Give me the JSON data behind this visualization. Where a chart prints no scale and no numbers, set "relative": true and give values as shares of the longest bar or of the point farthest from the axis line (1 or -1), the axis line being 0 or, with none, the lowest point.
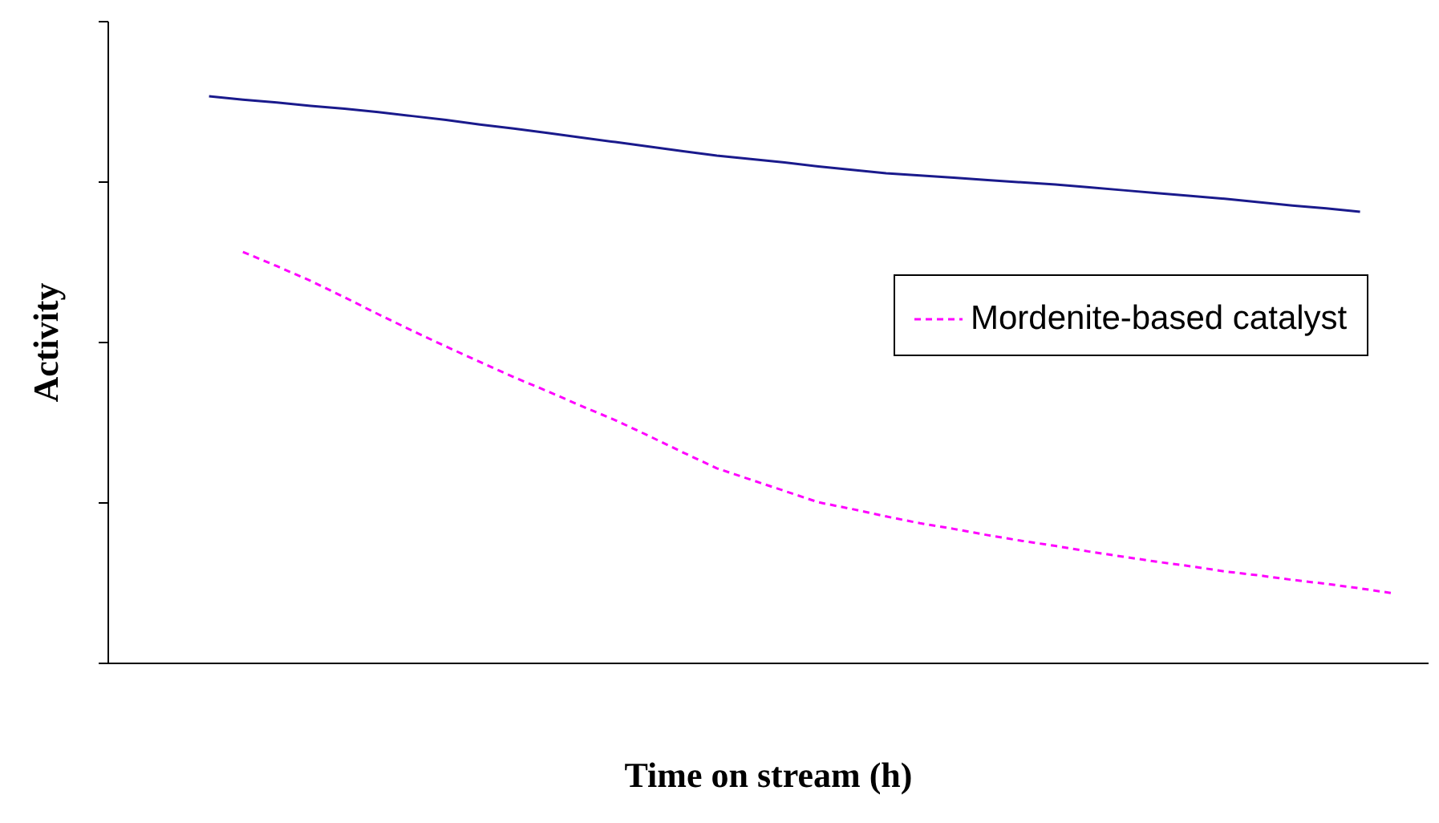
{
  "chart_data": {
    "type": "line",
    "relative": true,
    "xlabel": "Time on stream (h)",
    "ylabel": "Activity",
    "legend": "right",
    "categories": [
      null,
      null,
      null,
      null,
      null,
      null,
      null,
      null,
      null,
      null,
      null,
      null,
      null,
      null,
      null,
      null,
      null,
      null,
      null,
      null,
      null,
      null,
      null,
      null,
      null,
      null,
      null,
      null,
      null,
      null,
      null,
      null,
      null,
      null,
      null,
      null,
      null,
      null,
      null,
      null
    ],
    "series": [
      {
        "color": "#1a1a8c",
        "line_style": "solid",
        "values": [
          null,
          null,
          null,
          1.0,
          0.994,
          0.989,
          0.983,
          0.978,
          0.972,
          0.965,
          0.958,
          0.95,
          0.943,
          0.935,
          0.927,
          0.919,
          0.911,
          0.903,
          0.895,
          0.889,
          0.883,
          0.876,
          0.87,
          0.864,
          0.86,
          0.856,
          0.852,
          0.848,
          0.844,
          0.839,
          0.834,
          0.829,
          0.824,
          0.819,
          0.813,
          0.807,
          0.802,
          0.796,
          null,
          null
        ]
      },
      {
        "name": "Mordenite-based catalyst",
        "color": "#ff00ff",
        "line_style": "dashed",
        "values": [
          null,
          null,
          null,
          null,
          0.725,
          0.7,
          0.674,
          0.645,
          0.615,
          0.586,
          0.558,
          0.531,
          0.504,
          0.479,
          0.453,
          0.428,
          0.4,
          0.371,
          0.343,
          0.323,
          0.303,
          0.283,
          0.271,
          0.258,
          0.246,
          0.236,
          0.225,
          0.215,
          0.206,
          0.196,
          0.187,
          0.178,
          0.17,
          0.161,
          0.154,
          0.146,
          0.139,
          0.131,
          0.122,
          null
        ]
      }
    ]
  }
}
